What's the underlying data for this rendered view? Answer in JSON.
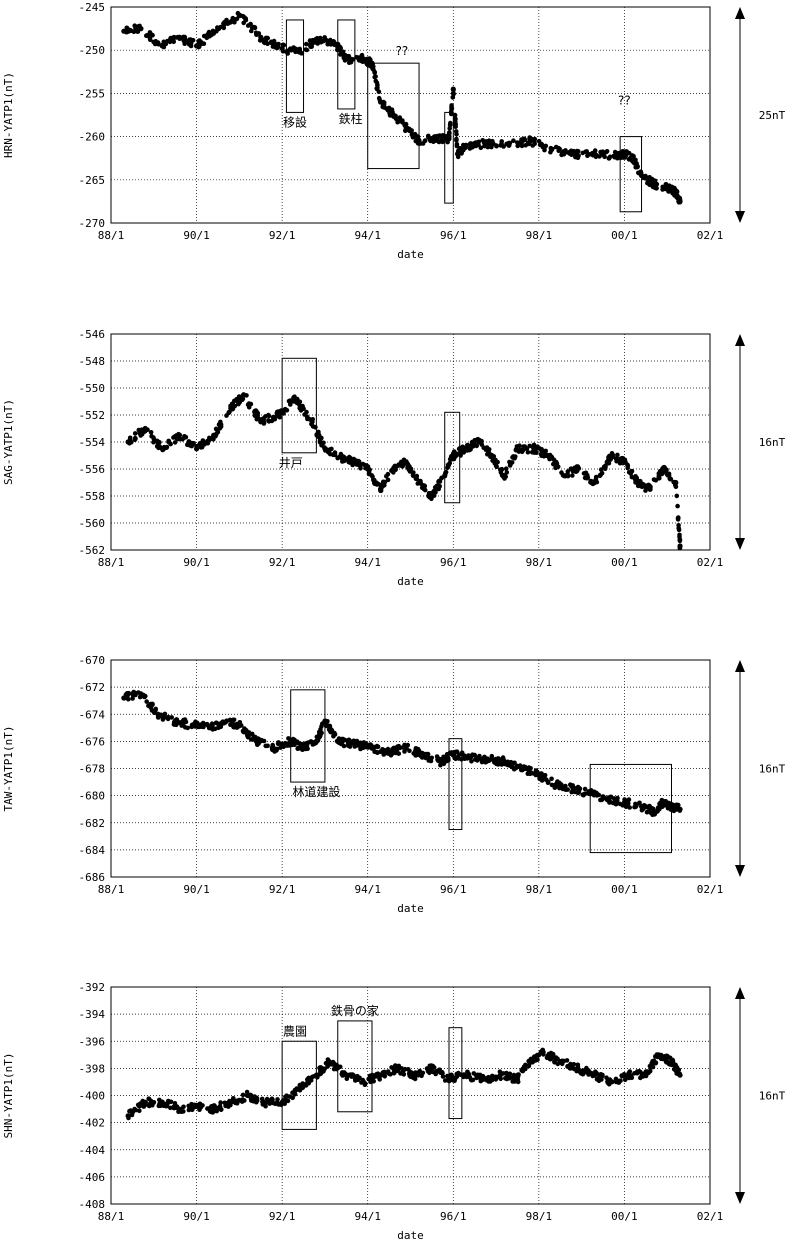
{
  "chart_data": [
    {
      "type": "scatter",
      "ylabel": "HRN-YATP1(nT)",
      "xlabel": "date",
      "x_ticks": [
        "88/1",
        "90/1",
        "92/1",
        "94/1",
        "96/1",
        "98/1",
        "00/1",
        "02/1"
      ],
      "xlim": [
        1988.0,
        2002.0
      ],
      "ylim": [
        -270,
        -245
      ],
      "y_ticks": [
        -245,
        -250,
        -255,
        -260,
        -265,
        -270
      ],
      "grid": true,
      "scale_label": "25nT",
      "series": [
        {
          "points": [
            [
              1988.3,
              -247.8
            ],
            [
              1988.7,
              -247.5
            ],
            [
              1989.2,
              -249.5
            ],
            [
              1989.6,
              -248.5
            ],
            [
              1990.0,
              -249.5
            ],
            [
              1990.5,
              -247.5
            ],
            [
              1991.0,
              -246.0
            ],
            [
              1991.5,
              -248.5
            ],
            [
              1992.0,
              -249.8
            ],
            [
              1992.4,
              -250.2
            ],
            [
              1992.8,
              -248.8
            ],
            [
              1993.2,
              -249.0
            ],
            [
              1993.5,
              -251.0
            ],
            [
              1993.9,
              -251.0
            ],
            [
              1994.1,
              -251.5
            ],
            [
              1994.3,
              -256.0
            ],
            [
              1994.6,
              -257.5
            ],
            [
              1994.9,
              -259.0
            ],
            [
              1995.2,
              -260.5
            ],
            [
              1995.6,
              -260.2
            ],
            [
              1995.9,
              -260.2
            ],
            [
              1996.0,
              -254.5
            ],
            [
              1996.1,
              -262.0
            ],
            [
              1996.3,
              -261.0
            ],
            [
              1996.8,
              -260.8
            ],
            [
              1997.3,
              -261.0
            ],
            [
              1997.8,
              -260.5
            ],
            [
              1998.3,
              -261.5
            ],
            [
              1998.8,
              -262.0
            ],
            [
              1999.3,
              -262.0
            ],
            [
              1999.8,
              -262.2
            ],
            [
              2000.0,
              -262.0
            ],
            [
              2000.2,
              -262.5
            ],
            [
              2000.4,
              -264.5
            ],
            [
              2000.7,
              -265.5
            ],
            [
              2001.0,
              -265.8
            ],
            [
              2001.2,
              -266.5
            ],
            [
              2001.3,
              -267.5
            ]
          ]
        }
      ],
      "annotations": [
        {
          "text": "移設",
          "x": 1992.3
        },
        {
          "text": "鉄柱",
          "x": 1993.6
        },
        {
          "text": "??",
          "x": 1994.8
        },
        {
          "text": "??",
          "x": 2000.0
        }
      ],
      "boxes": [
        [
          1992.1,
          1992.5,
          -246.5,
          -257.2
        ],
        [
          1993.3,
          1993.7,
          -246.5,
          -256.8
        ],
        [
          1994.0,
          1995.2,
          -251.5,
          -263.7
        ],
        [
          1995.8,
          1996.0,
          -257.2,
          -267.7
        ],
        [
          1999.9,
          2000.4,
          -260.0,
          -268.7
        ]
      ]
    },
    {
      "type": "scatter",
      "ylabel": "SAG-YATP1(nT)",
      "xlabel": "date",
      "x_ticks": [
        "88/1",
        "90/1",
        "92/1",
        "94/1",
        "96/1",
        "98/1",
        "00/1",
        "02/1"
      ],
      "xlim": [
        1988.0,
        2002.0
      ],
      "ylim": [
        -562,
        -546
      ],
      "y_ticks": [
        -546,
        -548,
        -550,
        -552,
        -554,
        -556,
        -558,
        -560,
        -562
      ],
      "grid": true,
      "scale_label": "16nT",
      "series": [
        {
          "points": [
            [
              1988.4,
              -554.0
            ],
            [
              1988.8,
              -553.0
            ],
            [
              1989.2,
              -554.5
            ],
            [
              1989.6,
              -553.5
            ],
            [
              1990.0,
              -554.5
            ],
            [
              1990.4,
              -553.5
            ],
            [
              1990.8,
              -551.5
            ],
            [
              1991.1,
              -550.5
            ],
            [
              1991.5,
              -552.5
            ],
            [
              1991.9,
              -552.0
            ],
            [
              1992.3,
              -550.8
            ],
            [
              1992.7,
              -552.5
            ],
            [
              1993.0,
              -554.5
            ],
            [
              1993.4,
              -555.2
            ],
            [
              1993.7,
              -555.5
            ],
            [
              1994.0,
              -556.0
            ],
            [
              1994.3,
              -557.5
            ],
            [
              1994.6,
              -556.0
            ],
            [
              1994.9,
              -555.5
            ],
            [
              1995.2,
              -557.0
            ],
            [
              1995.5,
              -558.0
            ],
            [
              1995.8,
              -556.5
            ],
            [
              1996.0,
              -555.0
            ],
            [
              1996.3,
              -554.5
            ],
            [
              1996.6,
              -554.0
            ],
            [
              1996.9,
              -555.0
            ],
            [
              1997.2,
              -556.5
            ],
            [
              1997.5,
              -554.5
            ],
            [
              1997.9,
              -554.5
            ],
            [
              1998.2,
              -555.0
            ],
            [
              1998.6,
              -556.5
            ],
            [
              1998.9,
              -556.0
            ],
            [
              1999.3,
              -557.0
            ],
            [
              1999.7,
              -555.0
            ],
            [
              2000.0,
              -555.5
            ],
            [
              2000.3,
              -557.0
            ],
            [
              2000.6,
              -557.5
            ],
            [
              2000.9,
              -556.0
            ],
            [
              2001.2,
              -557.0
            ],
            [
              2001.3,
              -561.7
            ]
          ]
        }
      ],
      "annotations": [
        {
          "text": "井戸",
          "x": 1992.2
        }
      ],
      "boxes": [
        [
          1992.0,
          1992.8,
          -547.8,
          -554.8
        ],
        [
          1995.8,
          1996.15,
          -551.8,
          -558.5
        ]
      ]
    },
    {
      "type": "scatter",
      "ylabel": "TAW-YATP1(nT)",
      "xlabel": "date",
      "x_ticks": [
        "88/1",
        "90/1",
        "92/1",
        "94/1",
        "96/1",
        "98/1",
        "00/1",
        "02/1"
      ],
      "xlim": [
        1988.0,
        2002.0
      ],
      "ylim": [
        -686,
        -670
      ],
      "y_ticks": [
        -670,
        -672,
        -674,
        -676,
        -678,
        -680,
        -682,
        -684,
        -686
      ],
      "grid": true,
      "scale_label": "16nT",
      "series": [
        {
          "points": [
            [
              1988.3,
              -672.8
            ],
            [
              1988.7,
              -672.5
            ],
            [
              1989.1,
              -674.0
            ],
            [
              1989.5,
              -674.5
            ],
            [
              1989.9,
              -674.8
            ],
            [
              1990.3,
              -675.0
            ],
            [
              1990.7,
              -674.5
            ],
            [
              1991.0,
              -674.8
            ],
            [
              1991.4,
              -676.0
            ],
            [
              1991.8,
              -676.5
            ],
            [
              1992.2,
              -676.0
            ],
            [
              1992.5,
              -676.5
            ],
            [
              1992.8,
              -676.0
            ],
            [
              1993.0,
              -674.5
            ],
            [
              1993.3,
              -676.0
            ],
            [
              1993.7,
              -676.2
            ],
            [
              1994.1,
              -676.5
            ],
            [
              1994.5,
              -676.8
            ],
            [
              1994.9,
              -676.5
            ],
            [
              1995.3,
              -677.0
            ],
            [
              1995.7,
              -677.5
            ],
            [
              1996.0,
              -677.0
            ],
            [
              1996.4,
              -677.2
            ],
            [
              1996.8,
              -677.3
            ],
            [
              1997.2,
              -677.5
            ],
            [
              1997.6,
              -678.0
            ],
            [
              1998.0,
              -678.5
            ],
            [
              1998.4,
              -679.2
            ],
            [
              1998.8,
              -679.5
            ],
            [
              1999.2,
              -679.8
            ],
            [
              1999.6,
              -680.3
            ],
            [
              2000.0,
              -680.5
            ],
            [
              2000.4,
              -680.8
            ],
            [
              2000.7,
              -681.2
            ],
            [
              2000.9,
              -680.5
            ],
            [
              2001.1,
              -680.8
            ],
            [
              2001.3,
              -681.0
            ]
          ]
        }
      ],
      "annotations": [
        {
          "text": "林道建設",
          "x": 1992.8
        }
      ],
      "boxes": [
        [
          1992.2,
          1993.0,
          -672.2,
          -679.0
        ],
        [
          1995.9,
          1996.2,
          -675.8,
          -682.5
        ],
        [
          1999.2,
          2001.1,
          -677.7,
          -684.2
        ]
      ]
    },
    {
      "type": "scatter",
      "ylabel": "SHN-YATP1(nT)",
      "xlabel": "date",
      "x_ticks": [
        "88/1",
        "90/1",
        "92/1",
        "94/1",
        "96/1",
        "98/1",
        "00/1",
        "02/1"
      ],
      "xlim": [
        1988.0,
        2002.0
      ],
      "ylim": [
        -408,
        -392
      ],
      "y_ticks": [
        -392,
        -394,
        -396,
        -398,
        -400,
        -402,
        -404,
        -406,
        -408
      ],
      "grid": true,
      "scale_label": "16nT",
      "series": [
        {
          "points": [
            [
              1988.4,
              -401.5
            ],
            [
              1988.8,
              -400.5
            ],
            [
              1989.2,
              -400.5
            ],
            [
              1989.6,
              -401.0
            ],
            [
              1990.0,
              -400.8
            ],
            [
              1990.4,
              -401.0
            ],
            [
              1990.8,
              -400.5
            ],
            [
              1991.2,
              -400.0
            ],
            [
              1991.6,
              -400.5
            ],
            [
              1992.0,
              -400.5
            ],
            [
              1992.4,
              -399.5
            ],
            [
              1992.8,
              -398.5
            ],
            [
              1993.1,
              -397.5
            ],
            [
              1993.5,
              -398.5
            ],
            [
              1993.9,
              -399.0
            ],
            [
              1994.3,
              -398.5
            ],
            [
              1994.7,
              -398.0
            ],
            [
              1995.1,
              -398.5
            ],
            [
              1995.5,
              -398.0
            ],
            [
              1995.9,
              -398.8
            ],
            [
              1996.3,
              -398.5
            ],
            [
              1996.7,
              -398.8
            ],
            [
              1997.1,
              -398.5
            ],
            [
              1997.5,
              -398.8
            ],
            [
              1997.8,
              -397.5
            ],
            [
              1998.1,
              -396.8
            ],
            [
              1998.5,
              -397.5
            ],
            [
              1998.9,
              -398.0
            ],
            [
              1999.3,
              -398.5
            ],
            [
              1999.7,
              -399.0
            ],
            [
              2000.1,
              -398.5
            ],
            [
              2000.5,
              -398.5
            ],
            [
              2000.8,
              -397.0
            ],
            [
              2001.1,
              -397.5
            ],
            [
              2001.3,
              -398.5
            ]
          ]
        }
      ],
      "annotations": [
        {
          "text": "農園",
          "x": 1992.3
        },
        {
          "text": "鉄骨の家",
          "x": 1993.7
        }
      ],
      "boxes": [
        [
          1992.0,
          1992.8,
          -396.0,
          -402.5
        ],
        [
          1993.3,
          1994.1,
          -394.5,
          -401.2
        ],
        [
          1995.9,
          1996.2,
          -395.0,
          -401.7
        ]
      ]
    }
  ]
}
